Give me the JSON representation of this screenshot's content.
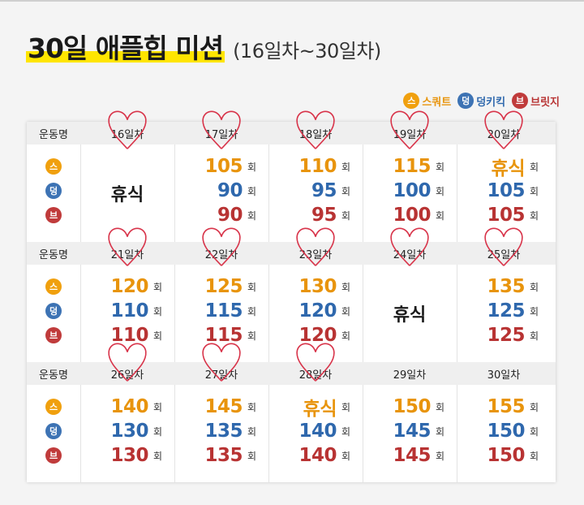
{
  "title": {
    "main": "30일 애플힙 미션",
    "sub": "(16일차~30일차)"
  },
  "legend": [
    {
      "icon": "스",
      "label": "스쿼트",
      "cls": "s"
    },
    {
      "icon": "덩",
      "label": "덩키킥",
      "cls": "d"
    },
    {
      "icon": "브",
      "label": "브릿지",
      "cls": "b"
    }
  ],
  "header_label": "운동명",
  "unit": "회",
  "exercise_icons": [
    "스",
    "덩",
    "브"
  ],
  "weeks": [
    {
      "days": [
        {
          "label": "16일차",
          "rest": "휴식",
          "values": null
        },
        {
          "label": "17일차",
          "values": [
            "105",
            "90",
            "90"
          ]
        },
        {
          "label": "18일차",
          "values": [
            "110",
            "95",
            "95"
          ]
        },
        {
          "label": "19일차",
          "values": [
            "115",
            "100",
            "100"
          ]
        },
        {
          "label": "20일차",
          "values": [
            "휴식",
            "105",
            "105"
          ]
        }
      ]
    },
    {
      "days": [
        {
          "label": "21일차",
          "values": [
            "120",
            "110",
            "110"
          ]
        },
        {
          "label": "22일차",
          "values": [
            "125",
            "115",
            "115"
          ]
        },
        {
          "label": "23일차",
          "values": [
            "130",
            "120",
            "120"
          ]
        },
        {
          "label": "24일차",
          "rest": "휴식",
          "values": null
        },
        {
          "label": "25일차",
          "values": [
            "135",
            "125",
            "125"
          ]
        }
      ]
    },
    {
      "days": [
        {
          "label": "26일차",
          "values": [
            "140",
            "130",
            "130"
          ]
        },
        {
          "label": "27일차",
          "values": [
            "145",
            "135",
            "135"
          ]
        },
        {
          "label": "28일차",
          "values": [
            "휴식",
            "140",
            "140"
          ]
        },
        {
          "label": "29일차",
          "values": [
            "150",
            "145",
            "145"
          ]
        },
        {
          "label": "30일차",
          "values": [
            "155",
            "150",
            "150"
          ]
        }
      ]
    }
  ],
  "heart_marked_days": [
    "16일차",
    "17일차",
    "18일차",
    "19일차",
    "20일차",
    "21일차",
    "22일차",
    "23일차",
    "24일차",
    "25일차",
    "26일차",
    "27일차",
    "28일차"
  ],
  "colors": {
    "squat": "#e8940c",
    "donkey": "#2f68ad",
    "bridge": "#b83333",
    "highlight": "#ffe500",
    "heart": "#d8344a"
  }
}
